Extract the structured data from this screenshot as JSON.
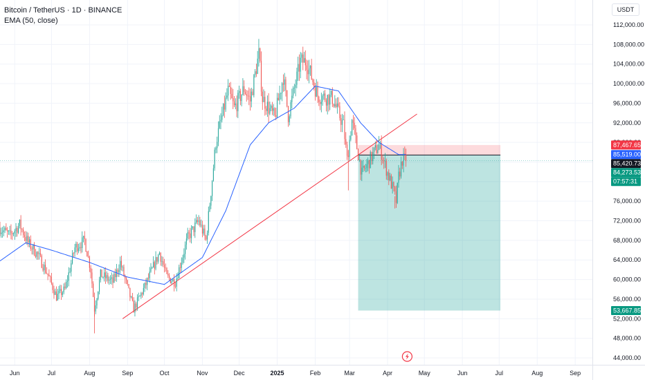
{
  "header": {
    "symbol_line": "Bitcoin / TetherUS · 1D · BINANCE",
    "indicator_line": "EMA (50, close)"
  },
  "currency_button": "USDT",
  "colors": {
    "up": "#26a69a",
    "down": "#ef5350",
    "ema": "#2962ff",
    "trendline": "#f23645",
    "stop_zone": "rgba(242,54,69,0.18)",
    "target_zone": "rgba(38,166,154,0.30)"
  },
  "icons": {
    "bottom_marker": "flash-icon"
  },
  "chart_data": {
    "type": "candlestick",
    "symbol": "BTCUSDT",
    "interval": "1D",
    "exchange": "BINANCE",
    "ylim": [
      42000,
      114000
    ],
    "xlim": [
      "2024-05-20",
      "2025-09-15"
    ],
    "y_ticks": [
      44000,
      48000,
      52000,
      56000,
      60000,
      64000,
      68000,
      72000,
      76000,
      80000,
      84000,
      88000,
      92000,
      96000,
      100000,
      104000,
      108000,
      112000
    ],
    "y_tick_labels": [
      "44,000.00",
      "48,000.00",
      "52,000.00",
      "56,000.00",
      "60,000.00",
      "64,000.00",
      "68,000.00",
      "72,000.00",
      "76,000.00",
      "80,000.00",
      "84,000.00",
      "88,000.00",
      "92,000.00",
      "96,000.00",
      "100,000.00",
      "104,000.00",
      "108,000.00",
      "112,000.00"
    ],
    "x_ticks": [
      {
        "label": "Jun",
        "date": "2024-06-01"
      },
      {
        "label": "Jul",
        "date": "2024-07-01"
      },
      {
        "label": "Aug",
        "date": "2024-08-01"
      },
      {
        "label": "Sep",
        "date": "2024-09-01"
      },
      {
        "label": "Oct",
        "date": "2024-10-01"
      },
      {
        "label": "Nov",
        "date": "2024-11-01"
      },
      {
        "label": "Dec",
        "date": "2024-12-01"
      },
      {
        "label": "2025",
        "date": "2025-01-01",
        "bold": true
      },
      {
        "label": "Feb",
        "date": "2025-02-01"
      },
      {
        "label": "Mar",
        "date": "2025-03-01"
      },
      {
        "label": "Apr",
        "date": "2025-04-01"
      },
      {
        "label": "May",
        "date": "2025-05-01"
      },
      {
        "label": "Jun",
        "date": "2025-06-01"
      },
      {
        "label": "Jul",
        "date": "2025-07-01"
      },
      {
        "label": "Aug",
        "date": "2025-08-01"
      },
      {
        "label": "Sep",
        "date": "2025-09-01"
      }
    ],
    "price_path": [
      [
        "2024-05-20",
        70500
      ],
      [
        "2024-05-28",
        69000
      ],
      [
        "2024-06-05",
        71200
      ],
      [
        "2024-06-12",
        67500
      ],
      [
        "2024-06-20",
        65000
      ],
      [
        "2024-06-28",
        61000
      ],
      [
        "2024-07-05",
        56500
      ],
      [
        "2024-07-12",
        58000
      ],
      [
        "2024-07-20",
        66500
      ],
      [
        "2024-07-28",
        68000
      ],
      [
        "2024-08-02",
        62000
      ],
      [
        "2024-08-05",
        54000
      ],
      [
        "2024-08-10",
        61000
      ],
      [
        "2024-08-20",
        59500
      ],
      [
        "2024-08-26",
        63500
      ],
      [
        "2024-09-06",
        54000
      ],
      [
        "2024-09-15",
        58500
      ],
      [
        "2024-09-27",
        65500
      ],
      [
        "2024-10-03",
        60500
      ],
      [
        "2024-10-10",
        59500
      ],
      [
        "2024-10-20",
        68500
      ],
      [
        "2024-10-29",
        72000
      ],
      [
        "2024-11-04",
        68000
      ],
      [
        "2024-11-12",
        88000
      ],
      [
        "2024-11-22",
        98500
      ],
      [
        "2024-11-27",
        95000
      ],
      [
        "2024-12-05",
        99000
      ],
      [
        "2024-12-10",
        96500
      ],
      [
        "2024-12-17",
        106000
      ],
      [
        "2024-12-20",
        97000
      ],
      [
        "2024-12-30",
        93000
      ],
      [
        "2025-01-06",
        101500
      ],
      [
        "2025-01-10",
        93500
      ],
      [
        "2025-01-20",
        104500
      ],
      [
        "2025-01-25",
        104500
      ],
      [
        "2025-02-03",
        97500
      ],
      [
        "2025-02-15",
        97000
      ],
      [
        "2025-02-24",
        91500
      ],
      [
        "2025-02-27",
        84500
      ],
      [
        "2025-03-03",
        92500
      ],
      [
        "2025-03-11",
        81500
      ],
      [
        "2025-03-20",
        85500
      ],
      [
        "2025-03-25",
        87500
      ],
      [
        "2025-03-31",
        82500
      ],
      [
        "2025-04-06",
        78000
      ],
      [
        "2025-04-08",
        76000
      ],
      [
        "2025-04-10",
        81000
      ],
      [
        "2025-04-13",
        84500
      ],
      [
        "2025-04-16",
        84300
      ]
    ],
    "ema_period": 50,
    "ema_path": [
      [
        "2024-05-20",
        63800
      ],
      [
        "2024-06-10",
        67500
      ],
      [
        "2024-07-01",
        66000
      ],
      [
        "2024-08-01",
        63500
      ],
      [
        "2024-09-01",
        60500
      ],
      [
        "2024-10-01",
        59000
      ],
      [
        "2024-11-01",
        64500
      ],
      [
        "2024-11-20",
        74000
      ],
      [
        "2024-12-10",
        87500
      ],
      [
        "2024-12-25",
        92000
      ],
      [
        "2025-01-15",
        95000
      ],
      [
        "2025-02-01",
        99500
      ],
      [
        "2025-02-20",
        98500
      ],
      [
        "2025-03-10",
        92000
      ],
      [
        "2025-03-25",
        88000
      ],
      [
        "2025-04-10",
        85519
      ],
      [
        "2025-04-16",
        85519
      ]
    ],
    "trendline": {
      "from": [
        "2024-08-28",
        52000
      ],
      "to": [
        "2025-04-25",
        93800
      ]
    },
    "short_position": {
      "start": "2025-03-08",
      "end": "2025-07-02",
      "stop": 87467.65,
      "entry": 85420.73,
      "target": 53667.85
    },
    "last_price": 84273.53,
    "countdown": "07:57:31",
    "price_tags": [
      {
        "label": "87,467.65",
        "price": 87467.65,
        "bg": "#f23645"
      },
      {
        "label": "85,519.00",
        "price": 85519,
        "bg": "#2962ff"
      },
      {
        "label": "85,420.73",
        "price": 85420.73,
        "bg": "#131722"
      },
      {
        "label": "84,273.53",
        "price": 84273.53,
        "bg": "#089981"
      },
      {
        "label": "53,667.85",
        "price": 53667.85,
        "bg": "#089981"
      }
    ]
  }
}
